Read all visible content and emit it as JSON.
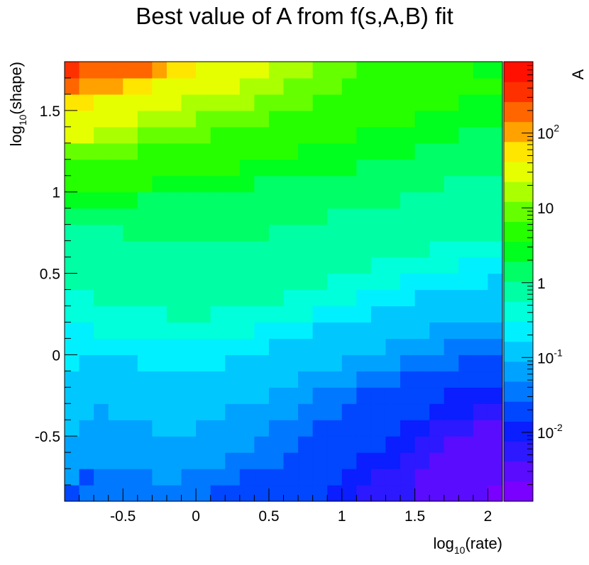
{
  "chart_data": {
    "type": "heatmap",
    "title": "Best value of A from f(s,A,B) fit",
    "xlabel": {
      "base": "log",
      "sub": "10",
      "rest": "(rate)"
    },
    "ylabel": {
      "base": "log",
      "sub": "10",
      "rest": "(shape)"
    },
    "zlabel": "A",
    "xlim": [
      -0.9,
      2.1
    ],
    "ylim": [
      -0.9,
      1.8
    ],
    "z_scale": "log",
    "zlim": [
      0.0012,
      900
    ],
    "grid": false,
    "legend": "colorbar-right",
    "x_ticks": [
      {
        "value": -0.5,
        "label": "-0.5"
      },
      {
        "value": 0,
        "label": "0"
      },
      {
        "value": 0.5,
        "label": "0.5"
      },
      {
        "value": 1,
        "label": "1"
      },
      {
        "value": 1.5,
        "label": "1.5"
      },
      {
        "value": 2,
        "label": "2"
      }
    ],
    "y_ticks": [
      {
        "value": -0.5,
        "label": "-0.5"
      },
      {
        "value": 0,
        "label": "0"
      },
      {
        "value": 0.5,
        "label": "0.5"
      },
      {
        "value": 1,
        "label": "1"
      },
      {
        "value": 1.5,
        "label": "1.5"
      }
    ],
    "z_ticks": [
      {
        "value": 0.01,
        "base": "10",
        "exp": "-2"
      },
      {
        "value": 0.1,
        "base": "10",
        "exp": "-1"
      },
      {
        "value": 1,
        "base": "1",
        "exp": ""
      },
      {
        "value": 10,
        "base": "10",
        "exp": ""
      },
      {
        "value": 100,
        "base": "10",
        "exp": "2"
      }
    ],
    "grid_x": {
      "start": -0.9,
      "step": 0.1,
      "count": 30
    },
    "grid_y": {
      "start": -0.9,
      "step": 0.1,
      "count": 27
    },
    "z_log10": [
      [
        -1.6,
        -1.4,
        -1.4,
        -1.4,
        -1.4,
        -1.4,
        -1.4,
        -1.4,
        -1.4,
        -1.4,
        -1.6,
        -1.6,
        -1.6,
        -1.6,
        -1.6,
        -1.6,
        -1.8,
        -1.8,
        -2.0,
        -2.0,
        -2.2,
        -2.2,
        -2.2,
        -2.2,
        -2.4,
        -2.4,
        -2.6,
        -2.6,
        -2.6,
        -2.8
      ],
      [
        -1.2,
        -1.6,
        -1.4,
        -1.4,
        -1.4,
        -1.4,
        -1.2,
        -1.2,
        -1.4,
        -1.4,
        -1.4,
        -1.4,
        -1.6,
        -1.6,
        -1.6,
        -1.6,
        -1.8,
        -1.8,
        -1.8,
        -2.0,
        -2.0,
        -2.2,
        -2.2,
        -2.2,
        -2.4,
        -2.4,
        -2.6,
        -2.6,
        -2.6,
        -2.6
      ],
      [
        -1.2,
        -1.2,
        -1.2,
        -1.2,
        -1.2,
        -1.2,
        -1.2,
        -1.2,
        -1.2,
        -1.2,
        -1.2,
        -1.4,
        -1.4,
        -1.4,
        -1.4,
        -1.6,
        -1.6,
        -1.6,
        -1.8,
        -1.8,
        -2.0,
        -2.0,
        -2.0,
        -2.2,
        -2.2,
        -2.4,
        -2.4,
        -2.6,
        -2.6,
        -2.6
      ],
      [
        -1.2,
        -1.2,
        -1.2,
        -1.2,
        -1.2,
        -1.2,
        -1.2,
        -1.2,
        -1.2,
        -1.2,
        -1.2,
        -1.2,
        -1.2,
        -1.4,
        -1.4,
        -1.4,
        -1.6,
        -1.6,
        -1.6,
        -1.8,
        -1.8,
        -1.8,
        -2.0,
        -2.0,
        -2.2,
        -2.2,
        -2.4,
        -2.4,
        -2.4,
        -2.6
      ],
      [
        -1.0,
        -1.2,
        -1.2,
        -1.2,
        -1.2,
        -1.2,
        -1.0,
        -1.0,
        -1.0,
        -1.2,
        -1.2,
        -1.2,
        -1.2,
        -1.2,
        -1.4,
        -1.4,
        -1.4,
        -1.6,
        -1.6,
        -1.6,
        -1.8,
        -1.8,
        -1.8,
        -2.0,
        -2.0,
        -2.2,
        -2.2,
        -2.2,
        -2.4,
        -2.4
      ],
      [
        -1.0,
        -1.0,
        -1.2,
        -1.0,
        -1.0,
        -1.0,
        -1.0,
        -1.0,
        -1.0,
        -1.0,
        -1.0,
        -1.2,
        -1.2,
        -1.2,
        -1.2,
        -1.2,
        -1.4,
        -1.4,
        -1.4,
        -1.6,
        -1.6,
        -1.6,
        -1.8,
        -1.8,
        -1.8,
        -2.0,
        -2.0,
        -2.0,
        -2.2,
        -2.2
      ],
      [
        -0.8,
        -1.0,
        -1.0,
        -1.0,
        -1.0,
        -0.8,
        -0.8,
        -0.8,
        -0.8,
        -1.0,
        -1.0,
        -1.0,
        -1.0,
        -1.0,
        -1.2,
        -1.2,
        -1.2,
        -1.4,
        -1.4,
        -1.4,
        -1.6,
        -1.6,
        -1.6,
        -1.6,
        -1.8,
        -1.8,
        -2.0,
        -2.0,
        -2.0,
        -2.0
      ],
      [
        -0.8,
        -0.8,
        -0.8,
        -0.8,
        -0.8,
        -0.8,
        -0.8,
        -0.8,
        -0.8,
        -0.8,
        -0.8,
        -0.8,
        -0.8,
        -1.0,
        -1.0,
        -1.0,
        -1.2,
        -1.2,
        -1.2,
        -1.2,
        -1.4,
        -1.4,
        -1.4,
        -1.6,
        -1.6,
        -1.6,
        -1.8,
        -1.8,
        -1.8,
        -1.8
      ],
      [
        -0.6,
        -0.8,
        -0.8,
        -0.8,
        -0.8,
        -0.6,
        -0.6,
        -0.6,
        -0.6,
        -0.6,
        -0.6,
        -0.8,
        -0.8,
        -0.8,
        -0.8,
        -0.8,
        -1.0,
        -1.0,
        -1.0,
        -1.2,
        -1.2,
        -1.2,
        -1.2,
        -1.4,
        -1.4,
        -1.4,
        -1.4,
        -1.6,
        -1.6,
        -1.6
      ],
      [
        -0.6,
        -0.6,
        -0.6,
        -0.6,
        -0.6,
        -0.6,
        -0.6,
        -0.6,
        -0.6,
        -0.6,
        -0.6,
        -0.6,
        -0.6,
        -0.6,
        -0.8,
        -0.8,
        -0.8,
        -0.8,
        -1.0,
        -1.0,
        -1.0,
        -1.0,
        -1.2,
        -1.2,
        -1.2,
        -1.2,
        -1.4,
        -1.4,
        -1.4,
        -1.4
      ],
      [
        -0.6,
        -0.6,
        -0.4,
        -0.4,
        -0.4,
        -0.4,
        -0.4,
        -0.4,
        -0.4,
        -0.4,
        -0.4,
        -0.4,
        -0.4,
        -0.6,
        -0.6,
        -0.6,
        -0.6,
        -0.8,
        -0.8,
        -0.8,
        -0.8,
        -1.0,
        -1.0,
        -1.0,
        -1.0,
        -1.2,
        -1.2,
        -1.2,
        -1.2,
        -1.2
      ],
      [
        -0.4,
        -0.4,
        -0.4,
        -0.4,
        -0.4,
        -0.4,
        -0.4,
        -0.2,
        -0.2,
        -0.2,
        -0.4,
        -0.4,
        -0.4,
        -0.4,
        -0.4,
        -0.4,
        -0.4,
        -0.6,
        -0.6,
        -0.6,
        -0.6,
        -0.8,
        -0.8,
        -0.8,
        -0.8,
        -1.0,
        -1.0,
        -1.0,
        -1.0,
        -1.0
      ],
      [
        -0.4,
        -0.4,
        -0.2,
        -0.2,
        -0.2,
        -0.2,
        -0.2,
        -0.2,
        -0.2,
        -0.2,
        -0.2,
        -0.2,
        -0.2,
        -0.2,
        -0.2,
        -0.4,
        -0.4,
        -0.4,
        -0.4,
        -0.4,
        -0.6,
        -0.6,
        -0.6,
        -0.6,
        -0.8,
        -0.8,
        -0.8,
        -0.8,
        -0.8,
        -0.8
      ],
      [
        -0.2,
        -0.2,
        -0.2,
        -0.2,
        -0.2,
        -0.2,
        -0.2,
        -0.2,
        -0.2,
        -0.2,
        -0.2,
        -0.2,
        -0.2,
        -0.2,
        -0.2,
        -0.2,
        -0.2,
        -0.2,
        -0.4,
        -0.4,
        -0.4,
        -0.4,
        -0.4,
        -0.6,
        -0.6,
        -0.6,
        -0.6,
        -0.6,
        -0.6,
        -0.8
      ],
      [
        -0.2,
        -0.2,
        -0.2,
        0.0,
        0.0,
        0.0,
        0.0,
        0.0,
        0.0,
        0.0,
        0.0,
        0.0,
        0.0,
        0.0,
        -0.2,
        -0.2,
        -0.2,
        -0.2,
        -0.2,
        -0.2,
        -0.2,
        -0.4,
        -0.4,
        -0.4,
        -0.4,
        -0.4,
        -0.4,
        -0.6,
        -0.6,
        -0.6
      ],
      [
        -0.2,
        -0.2,
        0.0,
        0.0,
        0.0,
        0.0,
        0.0,
        0.0,
        0.0,
        0.0,
        0.0,
        0.0,
        0.0,
        0.0,
        0.0,
        0.0,
        0.0,
        0.0,
        -0.2,
        -0.2,
        -0.2,
        -0.2,
        -0.2,
        -0.2,
        -0.2,
        -0.4,
        -0.4,
        -0.4,
        -0.4,
        -0.4
      ],
      [
        0.0,
        0.0,
        0.0,
        0.0,
        0.2,
        0.2,
        0.2,
        0.2,
        0.2,
        0.2,
        0.2,
        0.2,
        0.2,
        0.2,
        0.0,
        0.0,
        0.0,
        0.0,
        0.0,
        0.0,
        0.0,
        0.0,
        0.0,
        -0.2,
        -0.2,
        -0.2,
        -0.2,
        -0.2,
        -0.2,
        -0.2
      ],
      [
        0.2,
        0.2,
        0.2,
        0.2,
        0.2,
        0.2,
        0.2,
        0.2,
        0.2,
        0.2,
        0.2,
        0.2,
        0.2,
        0.2,
        0.2,
        0.2,
        0.2,
        0.2,
        0.0,
        0.0,
        0.0,
        0.0,
        0.0,
        0.0,
        0.0,
        0.0,
        0.0,
        0.0,
        -0.2,
        -0.2
      ],
      [
        0.4,
        0.4,
        0.4,
        0.4,
        0.4,
        0.2,
        0.2,
        0.2,
        0.2,
        0.2,
        0.2,
        0.2,
        0.2,
        0.2,
        0.2,
        0.2,
        0.2,
        0.2,
        0.2,
        0.2,
        0.2,
        0.2,
        0.2,
        0.0,
        0.0,
        0.0,
        0.0,
        0.0,
        0.0,
        0.0
      ],
      [
        0.6,
        0.6,
        0.6,
        0.6,
        0.6,
        0.6,
        0.4,
        0.4,
        0.4,
        0.4,
        0.4,
        0.4,
        0.4,
        0.2,
        0.2,
        0.2,
        0.2,
        0.2,
        0.2,
        0.2,
        0.2,
        0.2,
        0.2,
        0.2,
        0.2,
        0.2,
        0.0,
        0.0,
        0.0,
        0.0
      ],
      [
        0.8,
        0.8,
        0.8,
        0.8,
        0.8,
        0.6,
        0.6,
        0.6,
        0.6,
        0.6,
        0.6,
        0.6,
        0.4,
        0.4,
        0.4,
        0.4,
        0.4,
        0.4,
        0.4,
        0.4,
        0.2,
        0.2,
        0.2,
        0.2,
        0.2,
        0.2,
        0.2,
        0.2,
        0.2,
        0.2
      ],
      [
        1.0,
        1.0,
        1.0,
        1.0,
        1.0,
        0.8,
        0.8,
        0.8,
        0.8,
        0.8,
        0.6,
        0.6,
        0.6,
        0.6,
        0.6,
        0.6,
        0.4,
        0.4,
        0.4,
        0.4,
        0.4,
        0.4,
        0.4,
        0.4,
        0.2,
        0.2,
        0.2,
        0.2,
        0.2,
        0.2
      ],
      [
        1.4,
        1.4,
        1.2,
        1.2,
        1.2,
        1.0,
        1.0,
        1.0,
        1.0,
        1.0,
        0.8,
        0.8,
        0.8,
        0.8,
        0.8,
        0.6,
        0.6,
        0.6,
        0.6,
        0.6,
        0.4,
        0.4,
        0.4,
        0.4,
        0.4,
        0.4,
        0.4,
        0.2,
        0.2,
        0.2
      ],
      [
        1.6,
        1.6,
        1.4,
        1.4,
        1.4,
        1.2,
        1.2,
        1.2,
        1.2,
        1.0,
        1.0,
        1.0,
        1.0,
        1.0,
        0.8,
        0.8,
        0.8,
        0.8,
        0.6,
        0.6,
        0.6,
        0.6,
        0.6,
        0.6,
        0.4,
        0.4,
        0.4,
        0.4,
        0.4,
        0.4
      ],
      [
        1.8,
        1.8,
        1.6,
        1.6,
        1.6,
        1.4,
        1.4,
        1.4,
        1.2,
        1.2,
        1.2,
        1.2,
        1.2,
        1.0,
        1.0,
        1.0,
        1.0,
        0.8,
        0.8,
        0.8,
        0.8,
        0.8,
        0.6,
        0.6,
        0.6,
        0.6,
        0.6,
        0.4,
        0.4,
        0.4
      ],
      [
        2.2,
        2.0,
        2.0,
        2.0,
        1.8,
        1.8,
        1.6,
        1.6,
        1.4,
        1.4,
        1.4,
        1.4,
        1.2,
        1.2,
        1.2,
        1.0,
        1.0,
        1.0,
        1.0,
        0.8,
        0.8,
        0.8,
        0.8,
        0.6,
        0.6,
        0.6,
        0.6,
        0.6,
        0.6,
        0.6
      ],
      [
        2.6,
        2.4,
        2.4,
        2.4,
        2.2,
        2.2,
        2.0,
        1.8,
        1.8,
        1.6,
        1.6,
        1.4,
        1.4,
        1.4,
        1.2,
        1.2,
        1.2,
        1.0,
        1.0,
        1.0,
        0.8,
        0.8,
        0.8,
        0.8,
        0.6,
        0.6,
        0.6,
        0.6,
        0.4,
        0.4
      ]
    ],
    "palette": [
      "#7a00ff",
      "#5a0cff",
      "#2d19ff",
      "#0a1eff",
      "#0047ff",
      "#0078ff",
      "#00a2ff",
      "#00c8ff",
      "#00f0ff",
      "#00ffda",
      "#00ffa4",
      "#00ff66",
      "#00ff1e",
      "#26ff00",
      "#66ff00",
      "#aaff00",
      "#e6ff00",
      "#ffe600",
      "#ffa200",
      "#ff6600",
      "#ff3000",
      "#ff1000"
    ]
  }
}
